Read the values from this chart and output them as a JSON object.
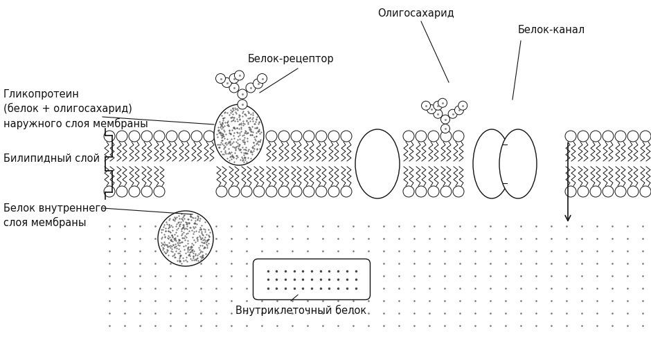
{
  "background_color": "#ffffff",
  "labels": {
    "oligosaccharide": "Олигосахарид",
    "receptor": "Белок-рецептор",
    "channel": "Белок-канал",
    "glycoprotein": "Гликопротеин\n(белок + олигосахарид)\nнаружного слоя мембраны",
    "bilipid": "Билипидный слой",
    "inner_protein": "Белок внутреннего\nслоя мембраны",
    "intracell": "Внутриклеточный белок"
  },
  "figsize": [
    9.4,
    4.99
  ],
  "dpi": 100
}
